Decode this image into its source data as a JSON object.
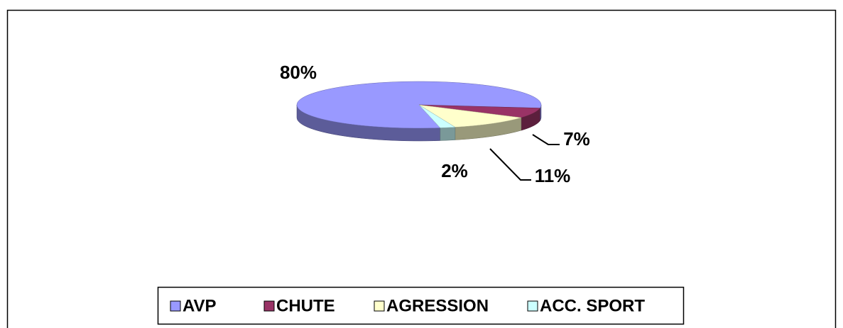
{
  "chart_data": {
    "type": "pie",
    "categories": [
      "AVP",
      "CHUTE",
      "AGRESSION",
      "ACC. SPORT"
    ],
    "values": [
      80,
      7,
      11,
      2
    ],
    "value_labels": [
      "80%",
      "7%",
      "11%",
      "2%"
    ],
    "colors": [
      "#9999ff",
      "#993366",
      "#ffffcc",
      "#ccffff"
    ],
    "legend": "bottom"
  }
}
